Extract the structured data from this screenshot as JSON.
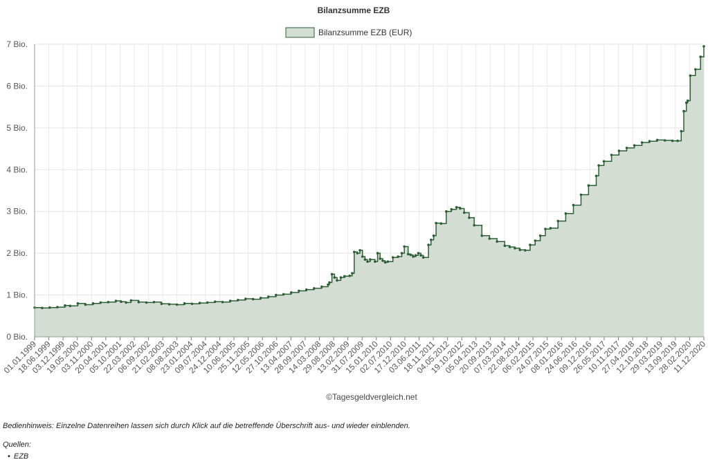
{
  "chart_data": {
    "type": "area",
    "title": "Bilanzsumme EZB",
    "credit": "©Tagesgeldvergleich.net",
    "ylim": [
      0,
      7
    ],
    "y_ticks": [
      "0 Bio.",
      "1 Bio.",
      "2 Bio.",
      "3 Bio.",
      "4 Bio.",
      "5 Bio.",
      "6 Bio.",
      "7 Bio."
    ],
    "grid": true,
    "legend_position": "top-center",
    "x_tick_labels": [
      "01.01.1999",
      "18.06.1999",
      "03.12.1999",
      "19.05.2000",
      "03.11.2000",
      "20.04.2001",
      "05.10.2001",
      "22.03.2002",
      "06.09.2002",
      "21.02.2003",
      "08.08.2003",
      "23.01.2004",
      "09.07.2004",
      "24.12.2004",
      "10.06.2005",
      "25.11.2005",
      "12.05.2006",
      "27.10.2006",
      "13.04.2007",
      "28.09.2007",
      "14.03.2008",
      "29.08.2008",
      "13.02.2009",
      "31.07.2009",
      "15.01.2010",
      "02.07.2010",
      "17.12.2010",
      "03.06.2011",
      "18.11.2011",
      "04.05.2012",
      "19.10.2012",
      "05.04.2013",
      "20.09.2013",
      "07.03.2014",
      "22.08.2014",
      "06.02.2015",
      "24.07.2015",
      "08.01.2016",
      "24.06.2016",
      "09.12.2016",
      "26.05.2017",
      "10.11.2017",
      "27.04.2018",
      "12.10.2018",
      "29.03.2019",
      "13.09.2019",
      "28.02.2020",
      "11.12.2020"
    ],
    "series": [
      {
        "name": "Bilanzsumme EZB (EUR)",
        "color": "#2e5e35",
        "fill": "#d4ddd4",
        "unit": "Bio. EUR",
        "points": [
          [
            "1999-01-01",
            0.7
          ],
          [
            "1999-04-01",
            0.69
          ],
          [
            "1999-07-01",
            0.7
          ],
          [
            "1999-10-01",
            0.71
          ],
          [
            "2000-01-01",
            0.75
          ],
          [
            "2000-03-01",
            0.74
          ],
          [
            "2000-06-01",
            0.8
          ],
          [
            "2000-09-01",
            0.77
          ],
          [
            "2000-12-01",
            0.8
          ],
          [
            "2001-03-01",
            0.82
          ],
          [
            "2001-06-01",
            0.83
          ],
          [
            "2001-09-01",
            0.86
          ],
          [
            "2001-11-01",
            0.84
          ],
          [
            "2002-01-01",
            0.82
          ],
          [
            "2002-03-01",
            0.87
          ],
          [
            "2002-06-01",
            0.83
          ],
          [
            "2002-09-01",
            0.82
          ],
          [
            "2002-12-01",
            0.83
          ],
          [
            "2003-03-01",
            0.79
          ],
          [
            "2003-06-01",
            0.78
          ],
          [
            "2003-09-01",
            0.77
          ],
          [
            "2003-12-01",
            0.8
          ],
          [
            "2004-03-01",
            0.79
          ],
          [
            "2004-06-01",
            0.81
          ],
          [
            "2004-09-01",
            0.82
          ],
          [
            "2004-12-01",
            0.84
          ],
          [
            "2005-03-01",
            0.83
          ],
          [
            "2005-06-01",
            0.86
          ],
          [
            "2005-09-01",
            0.88
          ],
          [
            "2005-12-01",
            0.91
          ],
          [
            "2006-03-01",
            0.9
          ],
          [
            "2006-06-01",
            0.93
          ],
          [
            "2006-09-01",
            0.96
          ],
          [
            "2006-12-01",
            1.0
          ],
          [
            "2007-03-01",
            1.02
          ],
          [
            "2007-06-01",
            1.06
          ],
          [
            "2007-09-01",
            1.1
          ],
          [
            "2007-12-01",
            1.13
          ],
          [
            "2008-03-01",
            1.16
          ],
          [
            "2008-06-01",
            1.2
          ],
          [
            "2008-08-15",
            1.25
          ],
          [
            "2008-09-01",
            1.3
          ],
          [
            "2008-10-01",
            1.5
          ],
          [
            "2008-11-01",
            1.42
          ],
          [
            "2008-12-01",
            1.35
          ],
          [
            "2009-01-15",
            1.42
          ],
          [
            "2009-03-01",
            1.45
          ],
          [
            "2009-05-01",
            1.46
          ],
          [
            "2009-06-01",
            1.52
          ],
          [
            "2009-06-25",
            2.03
          ],
          [
            "2009-08-01",
            2.0
          ],
          [
            "2009-09-01",
            2.07
          ],
          [
            "2009-10-01",
            1.92
          ],
          [
            "2009-11-01",
            1.85
          ],
          [
            "2009-12-01",
            1.8
          ],
          [
            "2010-01-01",
            1.85
          ],
          [
            "2010-03-01",
            1.8
          ],
          [
            "2010-04-01",
            2.0
          ],
          [
            "2010-05-01",
            1.87
          ],
          [
            "2010-06-01",
            1.82
          ],
          [
            "2010-07-01",
            1.78
          ],
          [
            "2010-08-01",
            1.8
          ],
          [
            "2010-10-01",
            1.9
          ],
          [
            "2010-12-01",
            1.92
          ],
          [
            "2011-01-15",
            2.0
          ],
          [
            "2011-02-15",
            2.16
          ],
          [
            "2011-04-01",
            1.98
          ],
          [
            "2011-05-01",
            1.96
          ],
          [
            "2011-06-01",
            1.92
          ],
          [
            "2011-07-01",
            1.95
          ],
          [
            "2011-08-01",
            2.0
          ],
          [
            "2011-09-01",
            1.95
          ],
          [
            "2011-10-01",
            1.9
          ],
          [
            "2011-12-01",
            2.2
          ],
          [
            "2012-01-01",
            2.32
          ],
          [
            "2012-02-01",
            2.42
          ],
          [
            "2012-03-01",
            2.72
          ],
          [
            "2012-05-01",
            2.71
          ],
          [
            "2012-07-01",
            3.0
          ],
          [
            "2012-09-01",
            3.05
          ],
          [
            "2012-11-01",
            3.1
          ],
          [
            "2012-12-15",
            3.07
          ],
          [
            "2013-02-01",
            2.97
          ],
          [
            "2013-04-01",
            2.85
          ],
          [
            "2013-06-01",
            2.67
          ],
          [
            "2013-09-01",
            2.42
          ],
          [
            "2013-12-01",
            2.35
          ],
          [
            "2014-03-01",
            2.28
          ],
          [
            "2014-06-01",
            2.18
          ],
          [
            "2014-08-01",
            2.15
          ],
          [
            "2014-10-01",
            2.12
          ],
          [
            "2014-12-01",
            2.08
          ],
          [
            "2015-02-01",
            2.07
          ],
          [
            "2015-04-01",
            2.2
          ],
          [
            "2015-06-01",
            2.3
          ],
          [
            "2015-08-01",
            2.42
          ],
          [
            "2015-10-01",
            2.58
          ],
          [
            "2015-12-01",
            2.6
          ],
          [
            "2016-03-01",
            2.77
          ],
          [
            "2016-06-01",
            2.95
          ],
          [
            "2016-09-01",
            3.15
          ],
          [
            "2016-12-01",
            3.4
          ],
          [
            "2017-03-01",
            3.62
          ],
          [
            "2017-06-01",
            3.85
          ],
          [
            "2017-07-01",
            4.1
          ],
          [
            "2017-09-01",
            4.2
          ],
          [
            "2017-12-01",
            4.35
          ],
          [
            "2018-03-01",
            4.45
          ],
          [
            "2018-06-01",
            4.52
          ],
          [
            "2018-09-01",
            4.58
          ],
          [
            "2018-12-01",
            4.65
          ],
          [
            "2019-03-01",
            4.68
          ],
          [
            "2019-06-01",
            4.71
          ],
          [
            "2019-09-01",
            4.7
          ],
          [
            "2019-12-01",
            4.69
          ],
          [
            "2020-02-01",
            4.69
          ],
          [
            "2020-03-15",
            4.92
          ],
          [
            "2020-04-15",
            5.4
          ],
          [
            "2020-05-15",
            5.6
          ],
          [
            "2020-06-01",
            5.65
          ],
          [
            "2020-07-01",
            6.25
          ],
          [
            "2020-09-01",
            6.4
          ],
          [
            "2020-11-01",
            6.7
          ],
          [
            "2020-12-11",
            6.95
          ]
        ]
      }
    ]
  },
  "footer": {
    "note": "Bedienhinweis: Einzelne Datenreihen lassen sich durch Klick auf die betreffende Überschrift aus- und wieder einblenden.",
    "sources_label": "Quellen:",
    "sources": [
      "EZB"
    ]
  }
}
